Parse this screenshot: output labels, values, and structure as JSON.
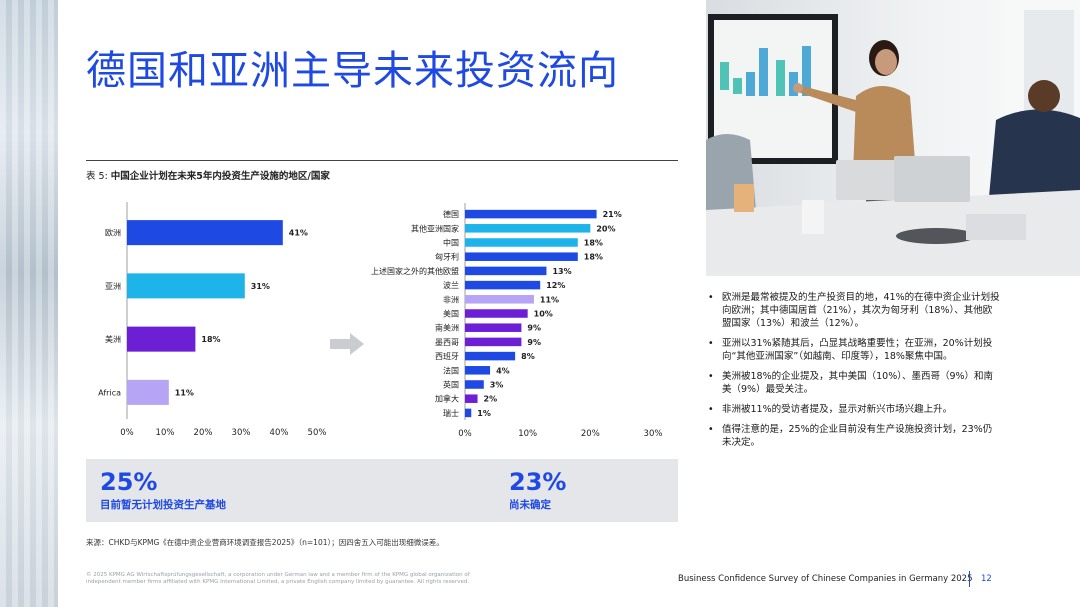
{
  "title": "德国和亚洲主导未来投资流向",
  "chart_heading": {
    "prefix": "表 5: ",
    "text": "中国企业计划在未来5年内投资生产设施的地区/国家"
  },
  "chart_data": [
    {
      "type": "bar",
      "orientation": "horizontal",
      "categories": [
        "欧洲",
        "亚洲",
        "美洲",
        "Africa"
      ],
      "values": [
        41,
        31,
        18,
        11
      ],
      "value_labels": [
        "41%",
        "31%",
        "18%",
        "11%"
      ],
      "colors": [
        "#1e49e2",
        "#1eb4ea",
        "#6d1fd6",
        "#b6a4f4"
      ],
      "xlim": [
        0,
        50
      ],
      "xticks": [
        "0%",
        "10%",
        "20%",
        "30%",
        "40%",
        "50%"
      ],
      "grid": false
    },
    {
      "type": "bar",
      "orientation": "horizontal",
      "categories": [
        "德国",
        "其他亚洲国家",
        "中国",
        "匈牙利",
        "上述国家之外的其他欧盟",
        "波兰",
        "非洲",
        "美国",
        "南美洲",
        "墨西哥",
        "西班牙",
        "法国",
        "英国",
        "加拿大",
        "瑞士"
      ],
      "values": [
        21,
        20,
        18,
        18,
        13,
        12,
        11,
        10,
        9,
        9,
        8,
        4,
        3,
        2,
        1
      ],
      "value_labels": [
        "21%",
        "20%",
        "18%",
        "18%",
        "13%",
        "12%",
        "11%",
        "10%",
        "9%",
        "9%",
        "8%",
        "4%",
        "3%",
        "2%",
        "1%"
      ],
      "colors": [
        "#1e49e2",
        "#1eb4ea",
        "#1eb4ea",
        "#1e49e2",
        "#1e49e2",
        "#1e49e2",
        "#b6a4f4",
        "#6d1fd6",
        "#6d1fd6",
        "#6d1fd6",
        "#1e49e2",
        "#1e49e2",
        "#1e49e2",
        "#6d1fd6",
        "#1e49e2"
      ],
      "xlim": [
        0,
        30
      ],
      "xticks": [
        "0%",
        "10%",
        "20%",
        "30%"
      ],
      "grid": false
    }
  ],
  "stats": [
    {
      "value": "25%",
      "label": "目前暂无计划投资生产基地"
    },
    {
      "value": "23%",
      "label": "尚未确定"
    }
  ],
  "source": "来源：CHKD与KPMG《在德中资企业营商环境调查报告2025》（n=101）；因四舍五入可能出现细微误差。",
  "bullets": [
    "欧洲是最常被提及的生产投资目的地，41%的在德中资企业计划投向欧洲；其中德国居首（21%），其次为匈牙利（18%）、其他欧盟国家（13%）和波兰（12%）。",
    "亚洲以31%紧随其后，凸显其战略重要性；在亚洲，20%计划投向“其他亚洲国家”（如越南、印度等），18%聚焦中国。",
    "美洲被18%的企业提及，其中美国（10%）、墨西哥（9%）和南美（9%）最受关注。",
    "非洲被11%的受访者提及，显示对新兴市场兴趣上升。",
    "值得注意的是，25%的企业目前没有生产设施投资计划，23%仍未决定。"
  ],
  "legal": "© 2025 KPMG AG Wirtschaftsprüfungsgesellschaft, a corporation under German law and a member firm of the KPMG global organization of independent member firms affiliated with KPMG International Limited, a private English company limited by guarantee. All rights reserved.",
  "footer": {
    "report_title": "Business Confidence Survey of Chinese Companies in Germany 2025",
    "page": "12"
  },
  "colors": {
    "brand_blue": "#1e49e2",
    "cyan": "#1eb4ea",
    "purple": "#6d1fd6",
    "lavender": "#b6a4f4",
    "stat_box": "#e4e6ea"
  }
}
